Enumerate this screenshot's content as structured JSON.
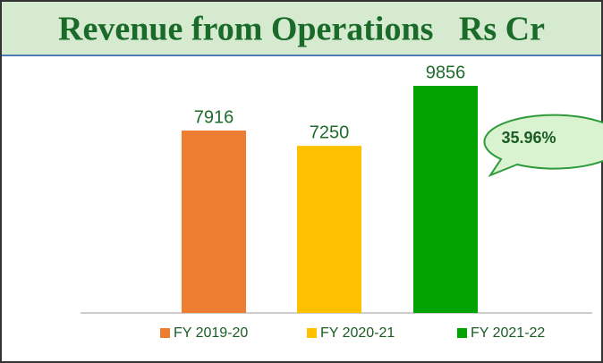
{
  "chart_data": {
    "type": "bar",
    "title": "Revenue from Operations   Rs Cr",
    "categories": [
      "FY 2019-20",
      "FY 2020-21",
      "FY 2021-22"
    ],
    "values": [
      7916,
      7250,
      9856
    ],
    "colors": [
      "#ed7d31",
      "#ffc000",
      "#00a300"
    ],
    "annotation": "35.96%",
    "legend": "bottom"
  }
}
